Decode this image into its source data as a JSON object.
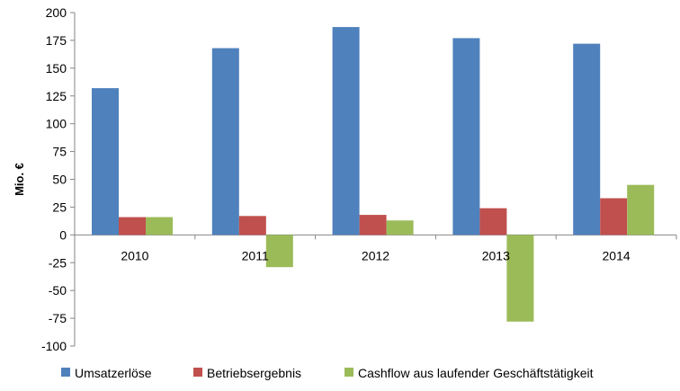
{
  "chart_data": {
    "type": "bar",
    "title": "",
    "xlabel": "",
    "ylabel": "Mio. €",
    "ylim": [
      -100,
      200
    ],
    "yticks": [
      200,
      175,
      150,
      125,
      100,
      75,
      50,
      25,
      0,
      -25,
      -50,
      -75,
      -100
    ],
    "categories": [
      "2010",
      "2011",
      "2012",
      "2013",
      "2014"
    ],
    "series": [
      {
        "name": "Umsatzerlöse",
        "color": "#4F81BD",
        "values": [
          132,
          168,
          187,
          177,
          172
        ]
      },
      {
        "name": "Betriebsergebnis",
        "color": "#C0504D",
        "values": [
          16,
          17,
          18,
          24,
          33
        ]
      },
      {
        "name": "Cashflow aus laufender  Geschäftstätigkeit",
        "color": "#9BBB59",
        "values": [
          16,
          -29,
          13,
          -78,
          45
        ]
      }
    ],
    "legend_position": "bottom",
    "grid": false
  }
}
